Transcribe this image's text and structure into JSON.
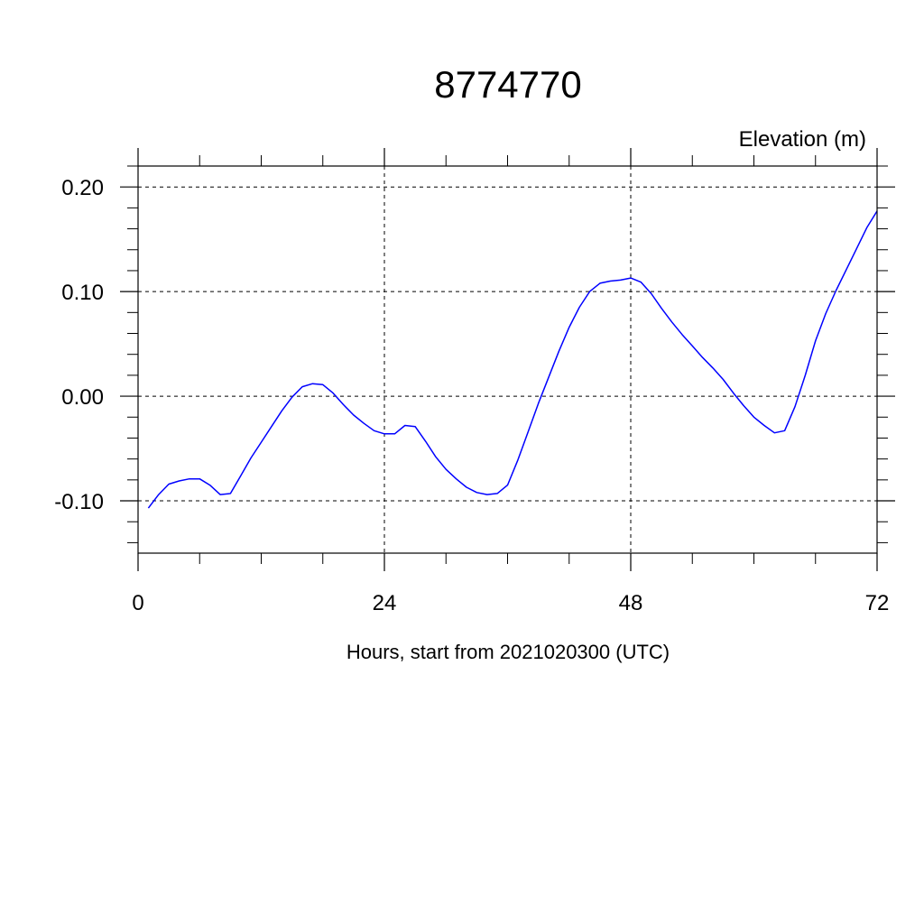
{
  "chart_data": {
    "type": "line",
    "title": "8774770",
    "ylabel": "Elevation (m)",
    "xlabel": "Hours, start from 2021020300 (UTC)",
    "xlim": [
      0,
      72
    ],
    "ylim": [
      -0.15,
      0.22
    ],
    "x_ticks": [
      0,
      24,
      48,
      72
    ],
    "x_tick_labels": [
      "0",
      "24",
      "48",
      "72"
    ],
    "y_ticks": [
      -0.1,
      0.0,
      0.1,
      0.2
    ],
    "y_tick_labels": [
      "-0.10",
      "0.00",
      "0.10",
      "0.20"
    ],
    "grid": true,
    "line_color": "#0000ff",
    "series": [
      {
        "x": [
          1,
          2,
          3,
          4,
          5,
          6,
          7,
          8,
          9,
          10,
          11,
          12,
          13,
          14,
          15,
          16,
          17,
          18,
          19,
          20,
          21,
          22,
          23,
          24,
          25,
          26,
          27,
          28,
          29,
          30,
          31,
          32,
          33,
          34,
          35,
          36,
          37,
          38,
          39,
          40,
          41,
          42,
          43,
          44,
          45,
          46,
          47,
          48,
          49,
          50,
          51,
          52,
          53,
          54,
          55,
          56,
          57,
          58,
          59,
          60,
          61,
          62,
          63,
          64,
          65,
          66,
          67,
          68,
          69,
          70,
          71,
          72
        ],
        "y": [
          -0.107,
          -0.094,
          -0.084,
          -0.081,
          -0.079,
          -0.079,
          -0.085,
          -0.094,
          -0.093,
          -0.076,
          -0.059,
          -0.044,
          -0.029,
          -0.014,
          -0.001,
          0.009,
          0.012,
          0.011,
          0.003,
          -0.008,
          -0.018,
          -0.026,
          -0.033,
          -0.036,
          -0.036,
          -0.028,
          -0.029,
          -0.043,
          -0.058,
          -0.07,
          -0.079,
          -0.087,
          -0.092,
          -0.094,
          -0.093,
          -0.085,
          -0.061,
          -0.034,
          -0.007,
          0.018,
          0.043,
          0.066,
          0.085,
          0.1,
          0.108,
          0.11,
          0.111,
          0.113,
          0.109,
          0.098,
          0.084,
          0.071,
          0.059,
          0.048,
          0.037,
          0.027,
          0.016,
          0.003,
          -0.009,
          -0.02,
          -0.028,
          -0.035,
          -0.033,
          -0.01,
          0.02,
          0.053,
          0.079,
          0.101,
          0.121,
          0.141,
          0.161,
          0.177
        ]
      }
    ]
  }
}
